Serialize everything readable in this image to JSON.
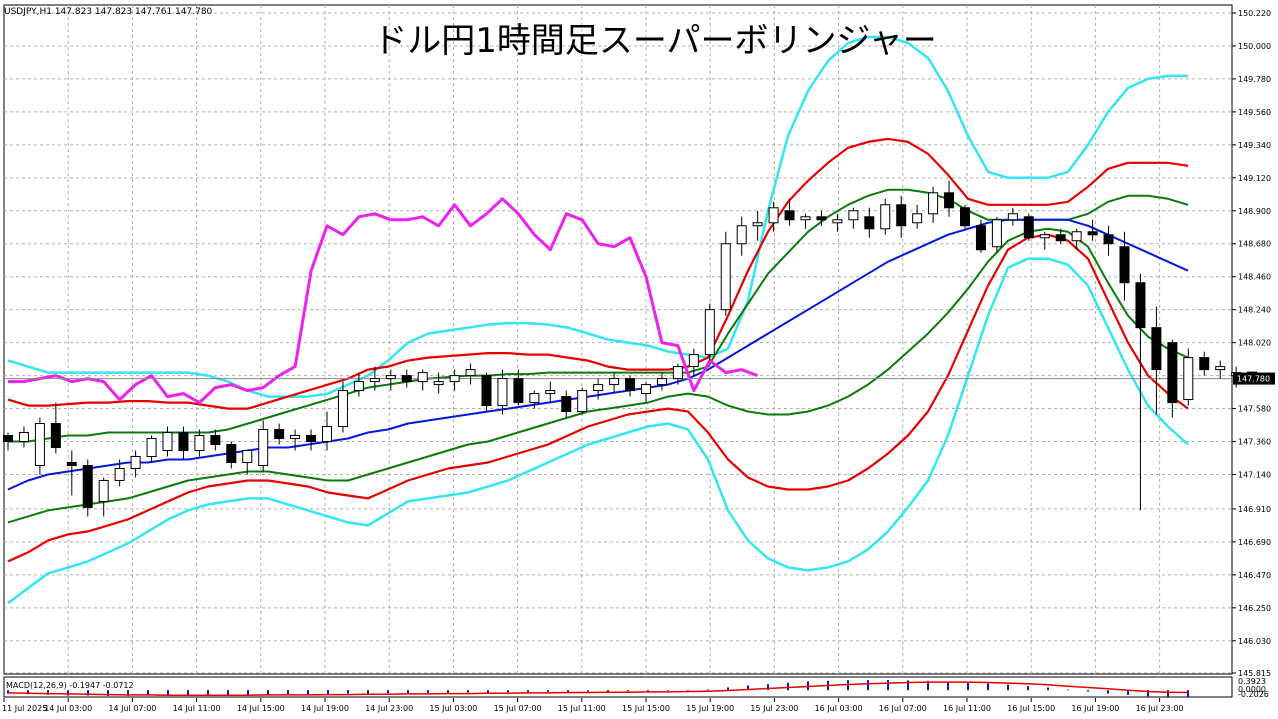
{
  "window": {
    "symbol_info": "USDJPY,H1  147.823 147.823 147.761 147.780",
    "chart_title": "ドル円1時間足スーパーボリンジャー",
    "current_price_label": "147.780"
  },
  "colors": {
    "background": "#ffffff",
    "grid": "#b0b0b0",
    "band3": "#33e6f0",
    "band2": "#e60000",
    "band1": "#0a7a0a",
    "middle": "#0018e0",
    "chikou": "#ee22ee",
    "candle_up": "#ffffff",
    "candle_down": "#000000",
    "macd_hist": "#0018e0",
    "macd_signal": "#e60000"
  },
  "chart_data": {
    "type": "line",
    "title": "ドル円1時間足スーパーボリンジャー",
    "instrument": "USDJPY,H1",
    "ohlc_header": "147.823 147.823 147.761 147.780",
    "y_axis_ticks": [
      "150.220",
      "150.000",
      "149.780",
      "149.560",
      "149.340",
      "149.120",
      "148.900",
      "148.680",
      "148.460",
      "148.240",
      "148.020",
      "147.800",
      "147.580",
      "147.360",
      "147.140",
      "146.910",
      "146.690",
      "146.470",
      "146.250",
      "146.030",
      "145.815"
    ],
    "ylim": [
      145.815,
      150.22
    ],
    "current_price": 147.78,
    "x_axis_ticks": [
      "11 Jul 2025",
      "14 Jul 03:00",
      "14 Jul 07:00",
      "14 Jul 11:00",
      "14 Jul 15:00",
      "14 Jul 19:00",
      "14 Jul 23:00",
      "15 Jul 03:00",
      "15 Jul 07:00",
      "15 Jul 11:00",
      "15 Jul 15:00",
      "15 Jul 19:00",
      "15 Jul 23:00",
      "16 Jul 03:00",
      "16 Jul 07:00",
      "16 Jul 11:00",
      "16 Jul 15:00",
      "16 Jul 19:00",
      "16 Jul 23:00"
    ],
    "candles": [
      [
        147.4,
        147.42,
        147.3,
        147.36
      ],
      [
        147.36,
        147.46,
        147.32,
        147.42
      ],
      [
        147.2,
        147.52,
        147.14,
        147.48
      ],
      [
        147.48,
        147.62,
        147.28,
        147.32
      ],
      [
        147.22,
        147.3,
        147.0,
        147.2
      ],
      [
        147.2,
        147.24,
        146.86,
        146.92
      ],
      [
        146.96,
        147.12,
        146.86,
        147.1
      ],
      [
        147.1,
        147.24,
        147.06,
        147.18
      ],
      [
        147.18,
        147.3,
        147.12,
        147.26
      ],
      [
        147.26,
        147.4,
        147.22,
        147.38
      ],
      [
        147.3,
        147.46,
        147.26,
        147.42
      ],
      [
        147.42,
        147.46,
        147.24,
        147.3
      ],
      [
        147.3,
        147.44,
        147.26,
        147.4
      ],
      [
        147.4,
        147.44,
        147.3,
        147.34
      ],
      [
        147.34,
        147.36,
        147.18,
        147.22
      ],
      [
        147.22,
        147.3,
        147.14,
        147.3
      ],
      [
        147.2,
        147.5,
        147.16,
        147.44
      ],
      [
        147.44,
        147.48,
        147.34,
        147.38
      ],
      [
        147.38,
        147.44,
        147.3,
        147.4
      ],
      [
        147.4,
        147.44,
        147.3,
        147.36
      ],
      [
        147.36,
        147.56,
        147.3,
        147.46
      ],
      [
        147.46,
        147.76,
        147.42,
        147.7
      ],
      [
        147.7,
        147.82,
        147.66,
        147.76
      ],
      [
        147.76,
        147.86,
        147.7,
        147.78
      ],
      [
        147.78,
        147.84,
        147.7,
        147.8
      ],
      [
        147.8,
        147.84,
        147.72,
        147.76
      ],
      [
        147.76,
        147.84,
        147.7,
        147.82
      ],
      [
        147.74,
        147.82,
        147.68,
        147.76
      ],
      [
        147.76,
        147.84,
        147.7,
        147.8
      ],
      [
        147.8,
        147.88,
        147.74,
        147.84
      ],
      [
        147.8,
        147.82,
        147.56,
        147.6
      ],
      [
        147.6,
        147.84,
        147.54,
        147.78
      ],
      [
        147.78,
        147.84,
        147.6,
        147.62
      ],
      [
        147.62,
        147.7,
        147.58,
        147.68
      ],
      [
        147.68,
        147.76,
        147.62,
        147.7
      ],
      [
        147.66,
        147.7,
        147.52,
        147.56
      ],
      [
        147.56,
        147.72,
        147.54,
        147.7
      ],
      [
        147.7,
        147.78,
        147.64,
        147.74
      ],
      [
        147.74,
        147.82,
        147.68,
        147.78
      ],
      [
        147.78,
        147.8,
        147.66,
        147.7
      ],
      [
        147.68,
        147.76,
        147.62,
        147.74
      ],
      [
        147.74,
        147.82,
        147.7,
        147.78
      ],
      [
        147.78,
        147.88,
        147.74,
        147.86
      ],
      [
        147.86,
        147.98,
        147.8,
        147.94
      ],
      [
        147.94,
        148.28,
        147.9,
        148.24
      ],
      [
        148.24,
        148.76,
        148.2,
        148.68
      ],
      [
        148.68,
        148.86,
        148.6,
        148.8
      ],
      [
        148.8,
        148.9,
        148.7,
        148.82
      ],
      [
        148.82,
        148.96,
        148.76,
        148.92
      ],
      [
        148.9,
        148.98,
        148.8,
        148.84
      ],
      [
        148.84,
        148.88,
        148.78,
        148.86
      ],
      [
        148.86,
        148.9,
        148.8,
        148.84
      ],
      [
        148.82,
        148.88,
        148.76,
        148.84
      ],
      [
        148.84,
        148.92,
        148.78,
        148.9
      ],
      [
        148.86,
        148.92,
        148.72,
        148.78
      ],
      [
        148.78,
        148.98,
        148.74,
        148.94
      ],
      [
        148.94,
        149.0,
        148.72,
        148.8
      ],
      [
        148.82,
        148.94,
        148.78,
        148.88
      ],
      [
        148.88,
        149.06,
        148.82,
        149.02
      ],
      [
        149.02,
        149.1,
        148.86,
        148.92
      ],
      [
        148.92,
        148.94,
        148.78,
        148.8
      ],
      [
        148.8,
        148.84,
        148.62,
        148.64
      ],
      [
        148.66,
        148.86,
        148.62,
        148.84
      ],
      [
        148.84,
        148.92,
        148.8,
        148.88
      ],
      [
        148.86,
        148.88,
        148.7,
        148.72
      ],
      [
        148.72,
        148.76,
        148.64,
        148.74
      ],
      [
        148.74,
        148.78,
        148.68,
        148.7
      ],
      [
        148.7,
        148.78,
        148.64,
        148.76
      ],
      [
        148.76,
        148.84,
        148.7,
        148.74
      ],
      [
        148.74,
        148.8,
        148.6,
        148.68
      ],
      [
        148.66,
        148.76,
        148.3,
        148.42
      ],
      [
        148.42,
        148.48,
        146.9,
        148.12
      ],
      [
        148.12,
        148.26,
        147.54,
        147.84
      ],
      [
        148.02,
        148.04,
        147.52,
        147.62
      ],
      [
        147.64,
        147.98,
        147.6,
        147.92
      ],
      [
        147.92,
        147.96,
        147.8,
        147.84
      ],
      [
        147.84,
        147.9,
        147.78,
        147.86
      ],
      [
        147.8,
        147.86,
        147.72,
        147.82
      ],
      [
        147.823,
        147.823,
        147.761,
        147.78
      ]
    ],
    "series": [
      {
        "key": "upper3",
        "values": [
          147.9,
          147.86,
          147.82,
          147.82,
          147.82,
          147.82,
          147.82,
          147.82,
          147.82,
          147.82,
          147.8,
          147.76,
          147.7,
          147.66,
          147.66,
          147.66,
          147.68,
          147.74,
          147.8,
          147.9,
          148.02,
          148.08,
          148.1,
          148.12,
          148.14,
          148.15,
          148.15,
          148.14,
          148.12,
          148.08,
          148.04,
          148.02,
          148.0,
          147.96,
          147.94,
          147.92,
          147.98,
          148.3,
          148.9,
          149.4,
          149.7,
          149.9,
          150.02,
          150.06,
          150.06,
          150.02,
          149.92,
          149.7,
          149.4,
          149.16,
          149.12,
          149.12,
          149.12,
          149.16,
          149.34,
          149.56,
          149.72,
          149.78,
          149.8,
          149.8
        ]
      },
      {
        "key": "upper2",
        "values": [
          147.64,
          147.6,
          147.6,
          147.61,
          147.62,
          147.62,
          147.63,
          147.63,
          147.62,
          147.62,
          147.6,
          147.58,
          147.58,
          147.62,
          147.66,
          147.7,
          147.74,
          147.78,
          147.84,
          147.86,
          147.9,
          147.92,
          147.93,
          147.94,
          147.95,
          147.95,
          147.94,
          147.94,
          147.92,
          147.9,
          147.86,
          147.84,
          147.84,
          147.84,
          147.86,
          147.92,
          148.2,
          148.5,
          148.76,
          148.96,
          149.1,
          149.22,
          149.32,
          149.36,
          149.38,
          149.36,
          149.28,
          149.14,
          148.98,
          148.94,
          148.94,
          148.94,
          148.94,
          148.96,
          149.06,
          149.18,
          149.22,
          149.22,
          149.22,
          149.2
        ]
      },
      {
        "key": "upper1",
        "values": [
          147.36,
          147.36,
          147.38,
          147.4,
          147.4,
          147.42,
          147.42,
          147.42,
          147.42,
          147.42,
          147.42,
          147.44,
          147.48,
          147.52,
          147.56,
          147.6,
          147.64,
          147.68,
          147.72,
          147.74,
          147.76,
          147.78,
          147.79,
          147.8,
          147.8,
          147.81,
          147.81,
          147.82,
          147.82,
          147.82,
          147.82,
          147.82,
          147.82,
          147.82,
          147.82,
          147.86,
          148.08,
          148.28,
          148.48,
          148.62,
          148.76,
          148.86,
          148.94,
          149.0,
          149.04,
          149.04,
          149.02,
          148.98,
          148.9,
          148.84,
          148.84,
          148.84,
          148.84,
          148.84,
          148.88,
          148.96,
          149.0,
          149.0,
          148.98,
          148.94
        ]
      },
      {
        "key": "middle",
        "values": [
          147.04,
          147.1,
          147.14,
          147.16,
          147.18,
          147.2,
          147.22,
          147.22,
          147.24,
          147.24,
          147.26,
          147.28,
          147.3,
          147.32,
          147.32,
          147.34,
          147.36,
          147.38,
          147.42,
          147.44,
          147.48,
          147.5,
          147.52,
          147.54,
          147.56,
          147.58,
          147.6,
          147.62,
          147.64,
          147.66,
          147.68,
          147.7,
          147.72,
          147.74,
          147.78,
          147.84,
          147.92,
          148.0,
          148.08,
          148.16,
          148.24,
          148.32,
          148.4,
          148.48,
          148.56,
          148.62,
          148.68,
          148.74,
          148.78,
          148.82,
          148.84,
          148.84,
          148.84,
          148.84,
          148.8,
          148.74,
          148.68,
          148.62,
          148.56,
          148.5
        ]
      },
      {
        "key": "lower1",
        "values": [
          146.82,
          146.86,
          146.9,
          146.92,
          146.94,
          146.96,
          146.98,
          147.02,
          147.06,
          147.1,
          147.12,
          147.14,
          147.16,
          147.16,
          147.14,
          147.12,
          147.1,
          147.1,
          147.14,
          147.18,
          147.22,
          147.26,
          147.3,
          147.34,
          147.36,
          147.4,
          147.44,
          147.48,
          147.52,
          147.56,
          147.58,
          147.6,
          147.62,
          147.66,
          147.68,
          147.66,
          147.6,
          147.56,
          147.54,
          147.54,
          147.56,
          147.6,
          147.66,
          147.74,
          147.84,
          147.96,
          148.08,
          148.22,
          148.38,
          148.56,
          148.7,
          148.76,
          148.78,
          148.76,
          148.66,
          148.42,
          148.2,
          148.06,
          147.98,
          147.92
        ]
      },
      {
        "key": "lower2",
        "values": [
          146.56,
          146.62,
          146.7,
          146.74,
          146.76,
          146.8,
          146.84,
          146.9,
          146.96,
          147.02,
          147.06,
          147.08,
          147.1,
          147.1,
          147.08,
          147.06,
          147.02,
          147.0,
          146.98,
          147.04,
          147.1,
          147.14,
          147.18,
          147.2,
          147.22,
          147.26,
          147.3,
          147.34,
          147.4,
          147.46,
          147.5,
          147.54,
          147.56,
          147.58,
          147.56,
          147.42,
          147.24,
          147.12,
          147.06,
          147.04,
          147.04,
          147.06,
          147.1,
          147.18,
          147.28,
          147.4,
          147.56,
          147.8,
          148.1,
          148.4,
          148.64,
          148.72,
          148.74,
          148.7,
          148.58,
          148.3,
          148.02,
          147.8,
          147.68,
          147.58
        ]
      },
      {
        "key": "lower3",
        "values": [
          146.28,
          146.38,
          146.48,
          146.52,
          146.56,
          146.62,
          146.68,
          146.76,
          146.84,
          146.9,
          146.94,
          146.96,
          146.98,
          146.98,
          146.94,
          146.9,
          146.86,
          146.82,
          146.8,
          146.88,
          146.96,
          146.98,
          147.0,
          147.02,
          147.06,
          147.1,
          147.16,
          147.22,
          147.28,
          147.34,
          147.38,
          147.42,
          147.46,
          147.48,
          147.44,
          147.24,
          146.9,
          146.7,
          146.58,
          146.52,
          146.5,
          146.52,
          146.56,
          146.64,
          146.76,
          146.92,
          147.1,
          147.4,
          147.8,
          148.2,
          148.52,
          148.58,
          148.58,
          148.54,
          148.4,
          148.12,
          147.84,
          147.6,
          147.46,
          147.34
        ]
      },
      {
        "key": "chikou",
        "values": [
          147.76,
          147.76,
          147.78,
          147.8,
          147.76,
          147.78,
          147.76,
          147.64,
          147.74,
          147.8,
          147.66,
          147.68,
          147.62,
          147.72,
          147.74,
          147.7,
          147.72,
          147.8,
          147.86,
          148.5,
          148.8,
          148.74,
          148.86,
          148.88,
          148.84,
          148.84,
          148.86,
          148.8,
          148.94,
          148.8,
          148.88,
          148.98,
          148.88,
          148.74,
          148.64,
          148.88,
          148.84,
          148.68,
          148.66,
          148.72,
          148.46,
          148.02,
          148.0,
          147.7,
          147.9,
          147.82,
          147.84,
          147.8
        ]
      }
    ],
    "macd": {
      "label": "MACD(12,26,9) -0.1947 -0.0712",
      "y_axis_ticks": [
        "0.3923",
        "0.0000",
        "-0.2026"
      ],
      "histogram": [
        -0.1,
        -0.12,
        -0.14,
        -0.16,
        -0.16,
        -0.17,
        -0.17,
        -0.16,
        -0.16,
        -0.15,
        -0.15,
        -0.14,
        -0.14,
        -0.13,
        -0.13,
        -0.12,
        -0.11,
        -0.1,
        -0.1,
        -0.09,
        -0.09,
        -0.08,
        -0.08,
        -0.07,
        -0.07,
        -0.06,
        -0.06,
        -0.05,
        -0.05,
        -0.04,
        -0.04,
        -0.03,
        -0.03,
        -0.02,
        -0.02,
        0.02,
        0.08,
        0.14,
        0.18,
        0.22,
        0.26,
        0.28,
        0.3,
        0.3,
        0.3,
        0.29,
        0.28,
        0.26,
        0.24,
        0.2,
        0.16,
        0.12,
        0.08,
        0.02,
        -0.04,
        -0.1,
        -0.14,
        -0.18,
        -0.2,
        -0.2
      ],
      "signal": [
        -0.08,
        -0.09,
        -0.1,
        -0.11,
        -0.12,
        -0.13,
        -0.14,
        -0.14,
        -0.15,
        -0.15,
        -0.15,
        -0.15,
        -0.15,
        -0.14,
        -0.14,
        -0.14,
        -0.13,
        -0.13,
        -0.12,
        -0.12,
        -0.11,
        -0.11,
        -0.1,
        -0.1,
        -0.09,
        -0.09,
        -0.08,
        -0.08,
        -0.07,
        -0.07,
        -0.06,
        -0.06,
        -0.05,
        -0.05,
        -0.04,
        -0.03,
        -0.01,
        0.02,
        0.05,
        0.08,
        0.11,
        0.14,
        0.17,
        0.19,
        0.21,
        0.23,
        0.24,
        0.24,
        0.24,
        0.23,
        0.21,
        0.19,
        0.16,
        0.12,
        0.08,
        0.04,
        0.0,
        -0.04,
        -0.06,
        -0.07
      ]
    }
  }
}
